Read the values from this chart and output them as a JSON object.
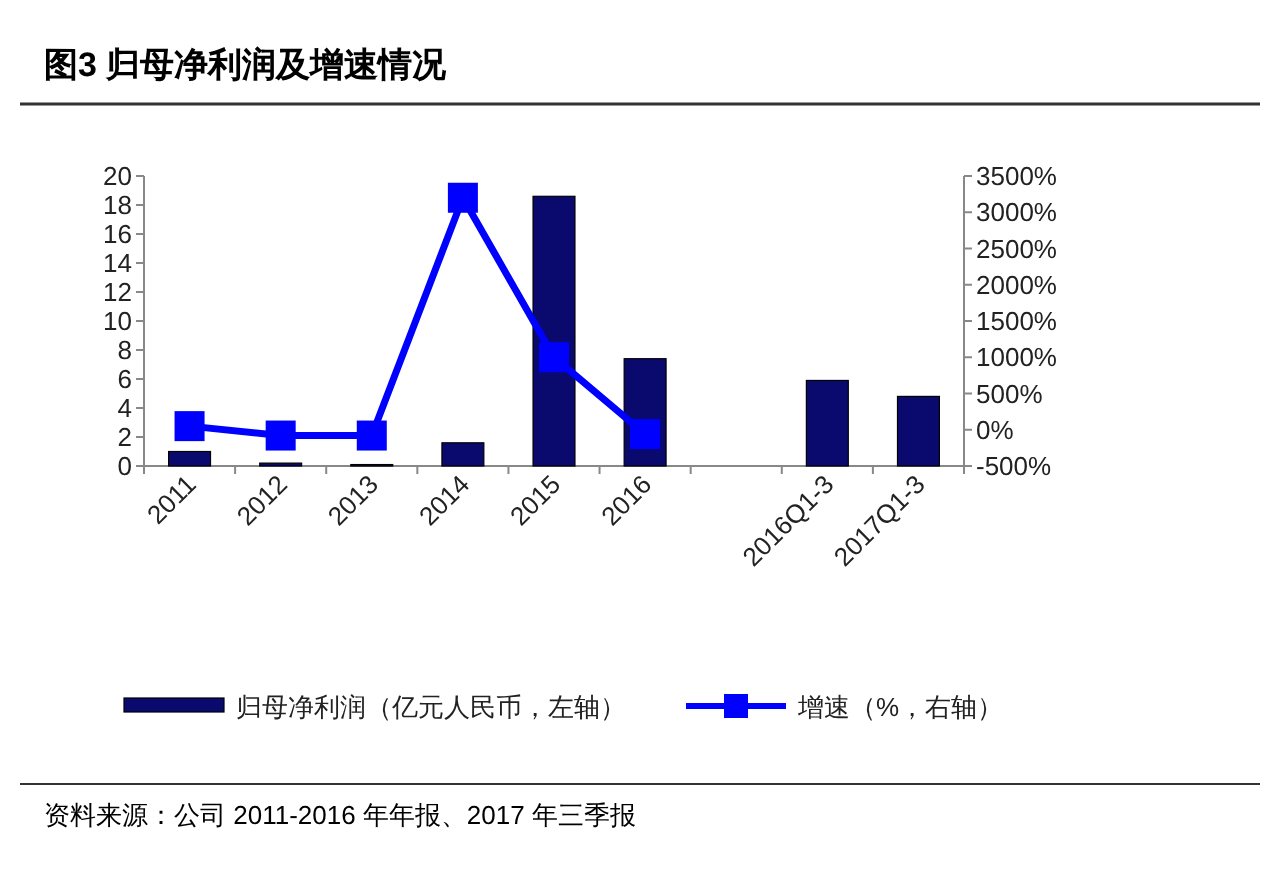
{
  "chart_data": {
    "type": "bar",
    "title": "图3  归母净利润及增速情况",
    "categories": [
      "2011",
      "2012",
      "2013",
      "2014",
      "2015",
      "2016",
      null,
      "2016Q1-3",
      "2017Q1-3"
    ],
    "series": [
      {
        "name": "归母净利润（亿元人民币，左轴）",
        "color": "#0a0a6e",
        "values": [
          1,
          0.2,
          0.1,
          1.6,
          18.6,
          7.4,
          null,
          5.9,
          4.8
        ]
      },
      {
        "name": "增速（%，右轴）",
        "type": "line",
        "axis": "y2",
        "color": "#0000ff",
        "marker": "square",
        "values": [
          50,
          -80,
          -80,
          3200,
          1000,
          -60,
          null,
          null,
          null
        ]
      }
    ],
    "ylim": [
      0,
      20
    ],
    "yticks": [
      0,
      2,
      4,
      6,
      8,
      10,
      12,
      14,
      16,
      18,
      20
    ],
    "y2lim": [
      -500,
      3500
    ],
    "y2ticks": [
      {
        "value": -500,
        "label": "-500%"
      },
      {
        "value": 0,
        "label": "0%"
      },
      {
        "value": 500,
        "label": "500%"
      },
      {
        "value": 1000,
        "label": "1000%"
      },
      {
        "value": 1500,
        "label": "1500%"
      },
      {
        "value": 2000,
        "label": "2000%"
      },
      {
        "value": 2500,
        "label": "2500%"
      },
      {
        "value": 3000,
        "label": "3000%"
      },
      {
        "value": 3500,
        "label": "3500%"
      }
    ],
    "grid": false,
    "legend": "bottom",
    "annotations": [
      "资料来源：公司 2011-2016 年年报、2017 年三季报"
    ]
  }
}
